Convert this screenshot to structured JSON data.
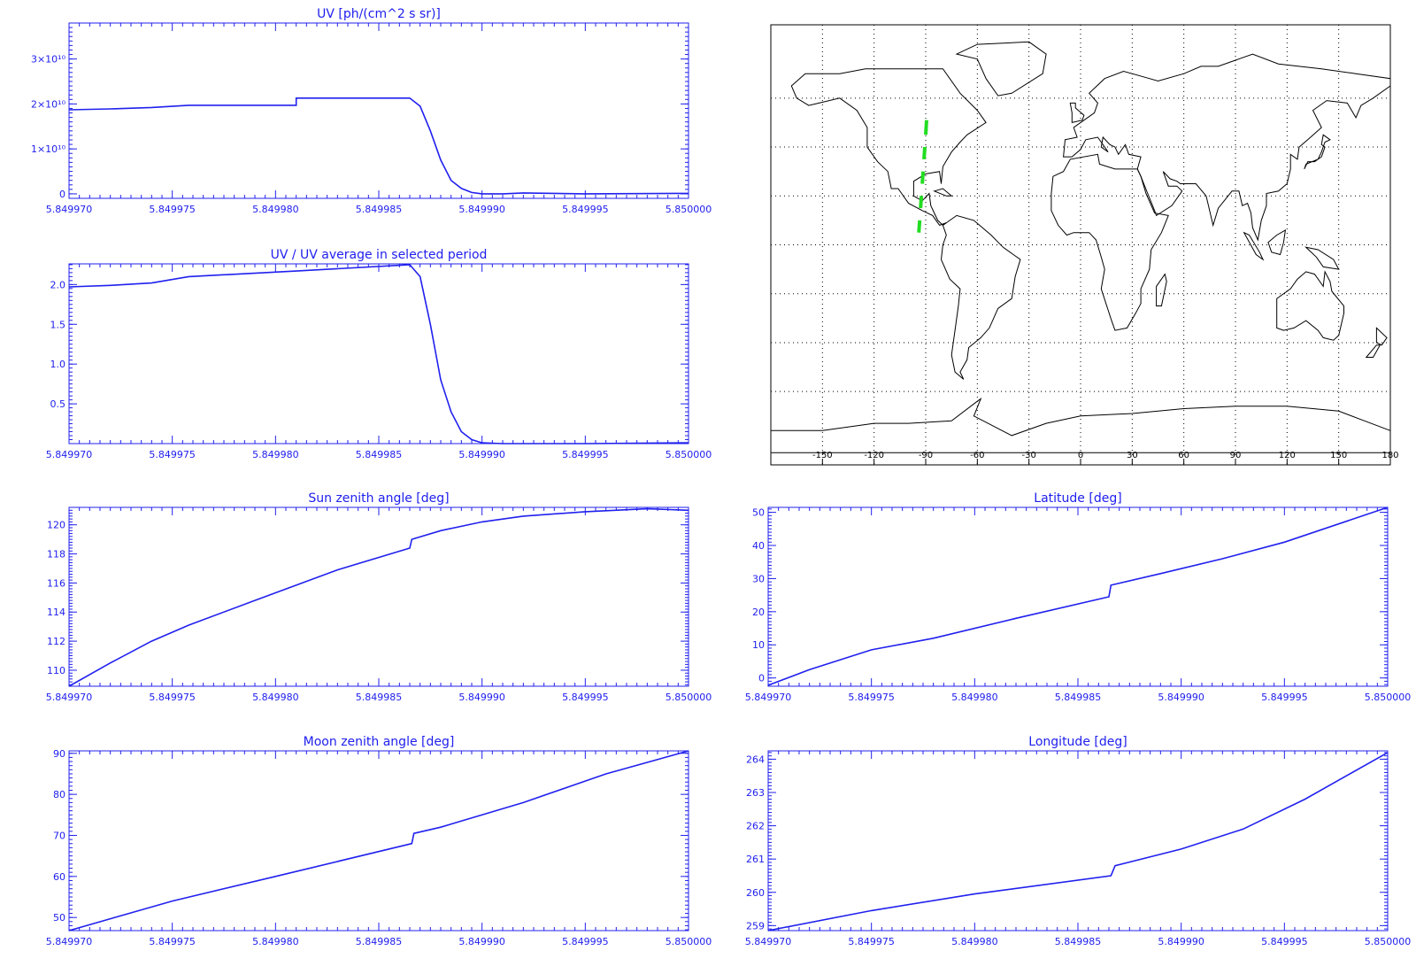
{
  "chart_data": [
    {
      "id": "uv",
      "type": "line",
      "title": "UV [ph/(cm^2 s sr)]",
      "xlabel": "",
      "ylabel": "",
      "xlim": [
        5.84997,
        5.85
      ],
      "ylim": [
        -0.1,
        3.8
      ],
      "xticks": [
        5.84997,
        5.849975,
        5.84998,
        5.849985,
        5.84999,
        5.849995,
        5.85
      ],
      "xtick_labels": [
        "5.849970",
        "5.849975",
        "5.849980",
        "5.849985",
        "5.849990",
        "5.849995",
        "5.850000"
      ],
      "yticks": [
        0,
        1,
        2,
        3
      ],
      "ytick_labels": [
        "0",
        "1×10¹⁰",
        "2×10¹⁰",
        "3×10¹⁰"
      ],
      "grid": false,
      "color": "#2020ee",
      "series": [
        {
          "x": [
            5.84997,
            5.849972,
            5.849974,
            5.8499758,
            5.849981,
            5.849981,
            5.8499865,
            5.849987,
            5.8499875,
            5.849988,
            5.8499885,
            5.849989,
            5.8499895,
            5.84999,
            5.849991,
            5.849992,
            5.849995,
            5.85
          ],
          "y": [
            1.87,
            1.89,
            1.92,
            1.97,
            1.97,
            2.13,
            2.13,
            1.95,
            1.4,
            0.75,
            0.3,
            0.12,
            0.03,
            0.0,
            0.0,
            0.02,
            0.0,
            0.01
          ]
        }
      ]
    },
    {
      "id": "uvavg",
      "type": "line",
      "title": "UV / UV average in selected period",
      "xlabel": "",
      "ylabel": "",
      "xlim": [
        5.84997,
        5.85
      ],
      "ylim": [
        0.0,
        2.26
      ],
      "xticks": [
        5.84997,
        5.849975,
        5.84998,
        5.849985,
        5.84999,
        5.849995,
        5.85
      ],
      "xtick_labels": [
        "5.849970",
        "5.849975",
        "5.849980",
        "5.849985",
        "5.849990",
        "5.849995",
        "5.850000"
      ],
      "yticks": [
        0.5,
        1.0,
        1.5,
        2.0
      ],
      "ytick_labels": [
        "0.5",
        "1.0",
        "1.5",
        "2.0"
      ],
      "grid": false,
      "color": "#2020ee",
      "series": [
        {
          "x": [
            5.84997,
            5.849972,
            5.849974,
            5.8499758,
            5.849981,
            5.8499865,
            5.849987,
            5.8499875,
            5.849988,
            5.8499885,
            5.849989,
            5.8499895,
            5.84999,
            5.849991,
            5.849995,
            5.85
          ],
          "y": [
            1.97,
            1.99,
            2.02,
            2.1,
            2.17,
            2.25,
            2.1,
            1.5,
            0.8,
            0.4,
            0.15,
            0.05,
            0.01,
            0.0,
            0.0,
            0.01
          ]
        }
      ]
    },
    {
      "id": "sza",
      "type": "line",
      "title": "Sun zenith angle [deg]",
      "xlabel": "",
      "ylabel": "",
      "xlim": [
        5.84997,
        5.85
      ],
      "ylim": [
        108.9,
        121.2
      ],
      "xticks": [
        5.84997,
        5.849975,
        5.84998,
        5.849985,
        5.84999,
        5.849995,
        5.85
      ],
      "xtick_labels": [
        "5.849970",
        "5.849975",
        "5.849980",
        "5.849985",
        "5.849990",
        "5.849995",
        "5.850000"
      ],
      "yticks": [
        110,
        112,
        114,
        116,
        118,
        120
      ],
      "ytick_labels": [
        "110",
        "112",
        "114",
        "116",
        "118",
        "120"
      ],
      "grid": false,
      "color": "#2020ee",
      "series": [
        {
          "x": [
            5.84997,
            5.849972,
            5.849974,
            5.8499758,
            5.849979,
            5.849983,
            5.8499865,
            5.8499866,
            5.849988,
            5.84999,
            5.849992,
            5.849995,
            5.849998,
            5.85
          ],
          "y": [
            108.9,
            110.5,
            112.0,
            113.1,
            114.8,
            116.9,
            118.4,
            119.0,
            119.6,
            120.2,
            120.6,
            120.9,
            121.1,
            121.0
          ]
        }
      ]
    },
    {
      "id": "lat",
      "type": "line",
      "title": "Latitude [deg]",
      "xlabel": "",
      "ylabel": "",
      "xlim": [
        5.84997,
        5.85
      ],
      "ylim": [
        -2.5,
        51.5
      ],
      "xticks": [
        5.84997,
        5.849975,
        5.84998,
        5.849985,
        5.84999,
        5.849995,
        5.85
      ],
      "xtick_labels": [
        "5.849970",
        "5.849975",
        "5.849980",
        "5.849985",
        "5.849990",
        "5.849995",
        "5.850000"
      ],
      "yticks": [
        0,
        10,
        20,
        30,
        40,
        50
      ],
      "ytick_labels": [
        "0",
        "10",
        "20",
        "30",
        "40",
        "50"
      ],
      "grid": false,
      "color": "#2020ee",
      "series": [
        {
          "x": [
            5.84997,
            5.849972,
            5.849975,
            5.849978,
            5.849982,
            5.8499865,
            5.8499866,
            5.849989,
            5.849992,
            5.849995,
            5.85
          ],
          "y": [
            -2.2,
            2.5,
            8.5,
            12.0,
            18.0,
            24.5,
            28.0,
            31.5,
            36.0,
            41.0,
            51.5
          ]
        }
      ]
    },
    {
      "id": "mza",
      "type": "line",
      "title": "Moon zenith angle [deg]",
      "xlabel": "",
      "ylabel": "",
      "xlim": [
        5.84997,
        5.85
      ],
      "ylim": [
        46.8,
        90.6
      ],
      "xticks": [
        5.84997,
        5.849975,
        5.84998,
        5.849985,
        5.84999,
        5.849995,
        5.85
      ],
      "xtick_labels": [
        "5.849970",
        "5.849975",
        "5.849980",
        "5.849985",
        "5.849990",
        "5.849995",
        "5.850000"
      ],
      "yticks": [
        50,
        60,
        70,
        80,
        90
      ],
      "ytick_labels": [
        "50",
        "60",
        "70",
        "80",
        "90"
      ],
      "grid": false,
      "color": "#2020ee",
      "series": [
        {
          "x": [
            5.84997,
            5.849975,
            5.84998,
            5.8499866,
            5.8499867,
            5.849988,
            5.849992,
            5.849996,
            5.85
          ],
          "y": [
            46.8,
            54.0,
            60.0,
            68.0,
            70.5,
            72.0,
            78.0,
            85.0,
            90.6
          ]
        }
      ]
    },
    {
      "id": "lon",
      "type": "line",
      "title": "Longitude [deg]",
      "xlabel": "",
      "ylabel": "",
      "xlim": [
        5.84997,
        5.85
      ],
      "ylim": [
        258.85,
        264.25
      ],
      "xticks": [
        5.84997,
        5.849975,
        5.84998,
        5.849985,
        5.84999,
        5.849995,
        5.85
      ],
      "xtick_labels": [
        "5.849970",
        "5.849975",
        "5.849980",
        "5.849985",
        "5.849990",
        "5.849995",
        "5.850000"
      ],
      "yticks": [
        259,
        260,
        261,
        262,
        263,
        264
      ],
      "ytick_labels": [
        "259",
        "260",
        "261",
        "262",
        "263",
        "264"
      ],
      "grid": false,
      "color": "#2020ee",
      "series": [
        {
          "x": [
            5.84997,
            5.849975,
            5.84998,
            5.8499866,
            5.8499868,
            5.84999,
            5.849993,
            5.849996,
            5.849998,
            5.85
          ],
          "y": [
            258.85,
            259.45,
            259.95,
            260.5,
            260.8,
            261.3,
            261.9,
            262.8,
            263.5,
            264.2
          ]
        }
      ]
    },
    {
      "id": "map",
      "type": "scatter",
      "title": "",
      "xlim": [
        -180,
        180
      ],
      "ylim": [
        -90,
        90
      ],
      "xticks": [
        -150,
        -120,
        -90,
        -60,
        -30,
        0,
        30,
        60,
        90,
        120,
        150,
        180
      ],
      "xtick_labels": [
        "-150",
        "-120",
        "-90",
        "-60",
        "-30",
        "0",
        "30",
        "60",
        "90",
        "120",
        "150",
        "180"
      ],
      "grid": true,
      "track_color": "#22dd22",
      "series": [
        {
          "x": [
            -89.5,
            -90.0,
            -90.5,
            -91.0,
            -91.5,
            -92.0,
            -92.5,
            -93.0,
            -93.5,
            -94.0,
            -94.5
          ],
          "y": [
            51.0,
            45.0,
            40.0,
            35.0,
            30.0,
            25.0,
            20.0,
            15.0,
            10.0,
            5.0,
            0.0
          ]
        }
      ]
    }
  ]
}
